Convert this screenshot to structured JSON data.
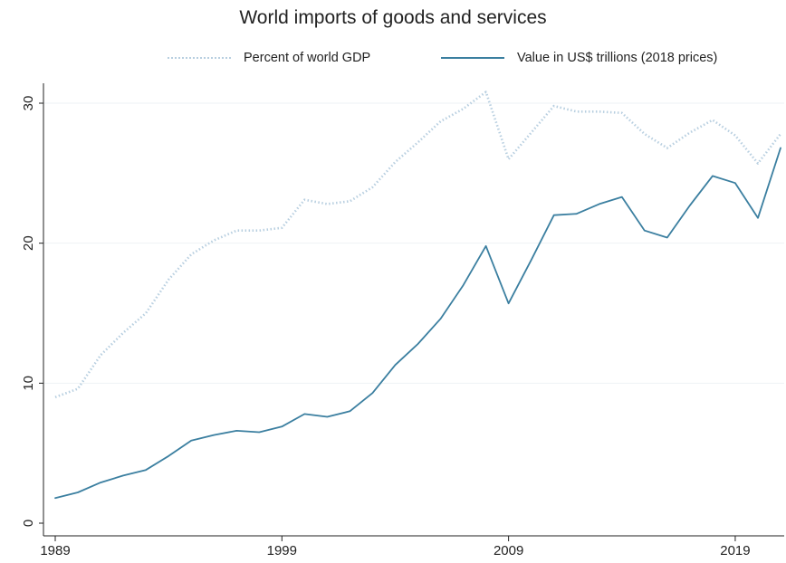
{
  "chart_data": {
    "type": "line",
    "title": "World imports of goods and services",
    "xlabel": "",
    "ylabel": "",
    "xlim": [
      1989,
      2021
    ],
    "ylim": [
      0,
      31.5
    ],
    "xticks": [
      1989,
      1999,
      2009,
      2019
    ],
    "yticks": [
      0,
      10,
      20,
      30
    ],
    "grid": true,
    "legend_position": "top",
    "x": [
      1989,
      1990,
      1991,
      1992,
      1993,
      1994,
      1995,
      1996,
      1997,
      1998,
      1999,
      2000,
      2001,
      2002,
      2003,
      2004,
      2005,
      2006,
      2007,
      2008,
      2009,
      2010,
      2011,
      2012,
      2013,
      2014,
      2015,
      2016,
      2017,
      2018,
      2019,
      2020,
      2021
    ],
    "series": [
      {
        "name": "Percent of world GDP",
        "color": "#b8cfe0",
        "style": "dotted",
        "values": [
          9.0,
          9.6,
          12.0,
          13.6,
          15.0,
          17.4,
          19.2,
          20.2,
          20.9,
          20.9,
          21.1,
          23.1,
          22.8,
          23.0,
          24.0,
          25.8,
          27.2,
          28.7,
          29.6,
          30.8,
          26.0,
          27.9,
          29.8,
          29.4,
          29.4,
          29.3,
          27.8,
          26.8,
          27.9,
          28.8,
          27.7,
          25.7,
          27.8
        ]
      },
      {
        "name": "Value in US$ trillions (2018 prices)",
        "color": "#3b7fa0",
        "style": "solid",
        "values": [
          1.8,
          2.2,
          2.9,
          3.4,
          3.8,
          4.8,
          5.9,
          6.3,
          6.6,
          6.5,
          6.9,
          7.8,
          7.6,
          8.0,
          9.3,
          11.3,
          12.8,
          14.6,
          17.0,
          19.8,
          15.7,
          18.8,
          22.0,
          22.1,
          22.8,
          23.3,
          20.9,
          20.4,
          22.7,
          24.8,
          24.3,
          21.8,
          26.8
        ]
      }
    ]
  }
}
